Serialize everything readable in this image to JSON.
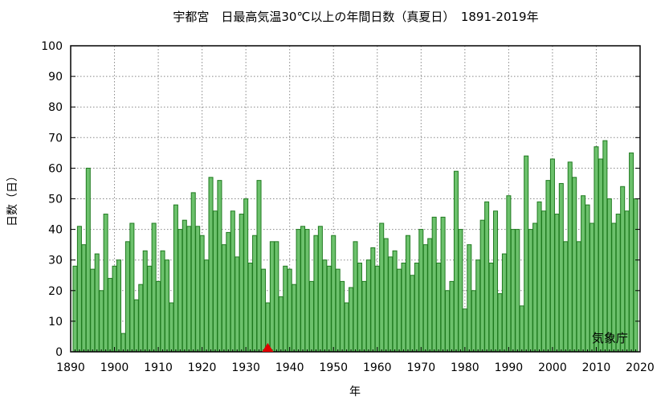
{
  "chart_data": {
    "type": "bar",
    "title": "宇都宮　日最高気温30℃以上の年間日数（真夏日）　1891-2019年",
    "xlabel": "年",
    "ylabel": "日数（日）",
    "credit": "気象庁",
    "xlim": [
      1890,
      2020
    ],
    "ylim": [
      0,
      100
    ],
    "x_ticks": [
      1890,
      1900,
      1910,
      1920,
      1930,
      1940,
      1950,
      1960,
      1970,
      1980,
      1990,
      2000,
      2010,
      2020
    ],
    "y_ticks": [
      0,
      10,
      20,
      30,
      40,
      50,
      60,
      70,
      80,
      90,
      100
    ],
    "grid": true,
    "bar_color": "#6cc16c",
    "bar_edge_color": "#1f7a1f",
    "marker": {
      "x": 1935,
      "y": 0,
      "shape": "triangle",
      "color": "#e00000"
    },
    "x": [
      1891,
      1892,
      1893,
      1894,
      1895,
      1896,
      1897,
      1898,
      1899,
      1900,
      1901,
      1902,
      1903,
      1904,
      1905,
      1906,
      1907,
      1908,
      1909,
      1910,
      1911,
      1912,
      1913,
      1914,
      1915,
      1916,
      1917,
      1918,
      1919,
      1920,
      1921,
      1922,
      1923,
      1924,
      1925,
      1926,
      1927,
      1928,
      1929,
      1930,
      1931,
      1932,
      1933,
      1934,
      1935,
      1936,
      1937,
      1938,
      1939,
      1940,
      1941,
      1942,
      1943,
      1944,
      1945,
      1946,
      1947,
      1948,
      1949,
      1950,
      1951,
      1952,
      1953,
      1954,
      1955,
      1956,
      1957,
      1958,
      1959,
      1960,
      1961,
      1962,
      1963,
      1964,
      1965,
      1966,
      1967,
      1968,
      1969,
      1970,
      1971,
      1972,
      1973,
      1974,
      1975,
      1976,
      1977,
      1978,
      1979,
      1980,
      1981,
      1982,
      1983,
      1984,
      1985,
      1986,
      1987,
      1988,
      1989,
      1990,
      1991,
      1992,
      1993,
      1994,
      1995,
      1996,
      1997,
      1998,
      1999,
      2000,
      2001,
      2002,
      2003,
      2004,
      2005,
      2006,
      2007,
      2008,
      2009,
      2010,
      2011,
      2012,
      2013,
      2014,
      2015,
      2016,
      2017,
      2018,
      2019
    ],
    "values": [
      28,
      41,
      35,
      60,
      27,
      32,
      20,
      45,
      24,
      28,
      30,
      6,
      36,
      42,
      17,
      22,
      33,
      28,
      42,
      23,
      33,
      30,
      16,
      48,
      40,
      43,
      41,
      52,
      41,
      38,
      30,
      57,
      46,
      56,
      35,
      39,
      46,
      31,
      45,
      50,
      29,
      38,
      56,
      27,
      16,
      36,
      36,
      18,
      28,
      27,
      22,
      40,
      41,
      40,
      23,
      38,
      41,
      30,
      28,
      38,
      27,
      23,
      16,
      21,
      36,
      29,
      23,
      30,
      34,
      28,
      42,
      37,
      31,
      33,
      27,
      29,
      38,
      25,
      29,
      40,
      35,
      37,
      44,
      29,
      44,
      20,
      23,
      59,
      40,
      14,
      35,
      20,
      30,
      43,
      49,
      29,
      46,
      19,
      32,
      51,
      40,
      40,
      15,
      64,
      40,
      42,
      49,
      46,
      56,
      63,
      45,
      55,
      36,
      62,
      57,
      36,
      51,
      48,
      42,
      67,
      63,
      69,
      50,
      42,
      45,
      54,
      46,
      65,
      50
    ]
  }
}
